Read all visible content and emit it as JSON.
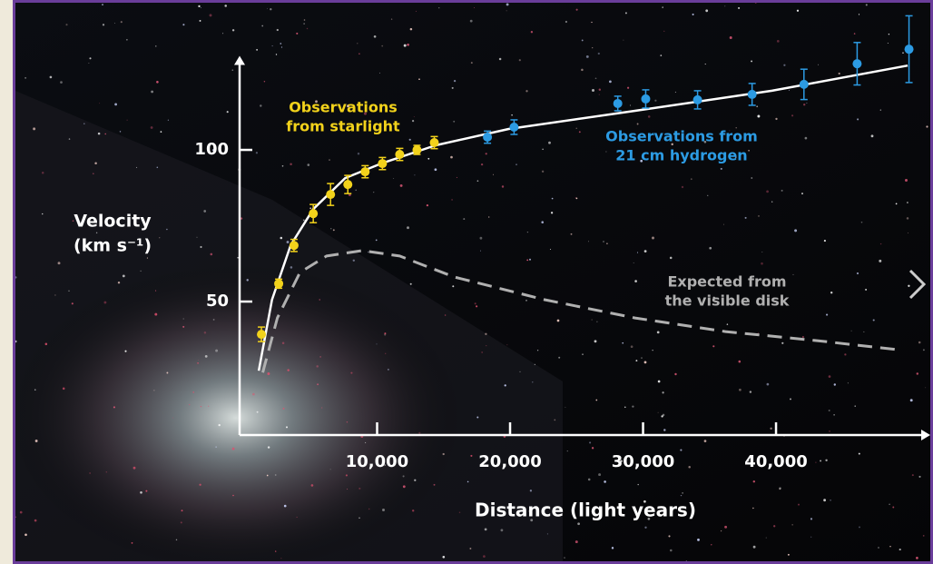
{
  "chart_data": {
    "type": "scatter",
    "xlabel": "Distance (light years)",
    "ylabel": [
      "Velocity",
      "(km s⁻¹)"
    ],
    "xlim": [
      -340,
      51600
    ],
    "ylim": [
      6,
      131
    ],
    "xticks": [
      {
        "value": 10000,
        "label": "10,000"
      },
      {
        "value": 20000,
        "label": "20,000"
      },
      {
        "value": 30000,
        "label": "30,000"
      },
      {
        "value": 40000,
        "label": "40,000"
      }
    ],
    "yticks": [
      50,
      100
    ],
    "series": [
      {
        "name": [
          "Observations",
          "from starlight"
        ],
        "color": "#f2d21b",
        "kind": "points",
        "x": [
          1300,
          2600,
          3750,
          5200,
          6500,
          7800,
          9100,
          10400,
          11700,
          13000,
          14300
        ],
        "values": [
          39.2,
          55.9,
          68.5,
          79,
          85.3,
          88.6,
          92.8,
          95.5,
          98.5,
          100,
          102.4
        ],
        "errors": [
          2.4,
          1.5,
          2,
          3,
          3.6,
          3,
          2,
          2,
          2,
          1.5,
          2
        ]
      },
      {
        "name": [
          "Observations from",
          "21 cm hydrogen"
        ],
        "color": "#2c9be3",
        "kind": "points",
        "x": [
          18300,
          20300,
          28100,
          30200,
          34100,
          38200,
          42100,
          46100,
          50000
        ],
        "values": [
          104.2,
          107.5,
          115.3,
          116.8,
          116.5,
          118.3,
          121.6,
          128.4,
          133.2
        ],
        "errors": [
          2,
          2.4,
          2.4,
          3,
          3,
          3.6,
          5,
          7,
          11
        ]
      },
      {
        "color": "#ffffff",
        "kind": "line",
        "x": [
          1100,
          2100,
          3500,
          5200,
          7600,
          10300,
          14400,
          19900,
          29400,
          39700,
          49900
        ],
        "values": [
          27.2,
          50.6,
          68.6,
          80.5,
          90.7,
          95.5,
          101.5,
          106.9,
          112.9,
          119.5,
          127.8
        ]
      },
      {
        "name": [
          "Expected from",
          "the visible disk"
        ],
        "color": "#b0b0b0",
        "kind": "dashed",
        "x": [
          1400,
          2500,
          4200,
          6200,
          8900,
          11700,
          15800,
          22600,
          29400,
          36200,
          43100,
          49200
        ],
        "values": [
          26.6,
          44.6,
          59.6,
          65,
          66.8,
          65,
          58.1,
          50.6,
          44.6,
          40.1,
          37.1,
          34.1
        ]
      }
    ]
  }
}
